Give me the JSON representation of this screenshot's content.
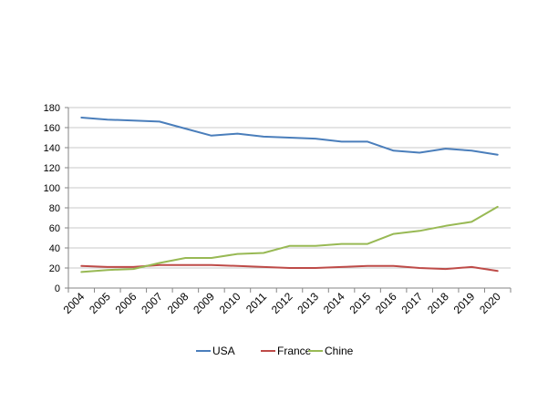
{
  "chart_data": {
    "type": "line",
    "title": "",
    "xlabel": "",
    "ylabel": "",
    "ylim": [
      0,
      180
    ],
    "y_ticks": [
      0,
      20,
      40,
      60,
      80,
      100,
      120,
      140,
      160,
      180
    ],
    "grid": "horizontal",
    "legend_position": "bottom",
    "categories": [
      "2004",
      "2005",
      "2006",
      "2007",
      "2008",
      "2009",
      "2010",
      "2011",
      "2012",
      "2013",
      "2014",
      "2015",
      "2016",
      "2017",
      "2018",
      "2019",
      "2020"
    ],
    "series": [
      {
        "name": "USA",
        "color": "#4a7ebb",
        "values": [
          170,
          168,
          167,
          166,
          159,
          152,
          154,
          151,
          150,
          149,
          146,
          146,
          137,
          135,
          139,
          137,
          133
        ]
      },
      {
        "name": "France",
        "color": "#be4b48",
        "values": [
          22,
          21,
          21,
          23,
          23,
          23,
          22,
          21,
          20,
          20,
          21,
          22,
          22,
          20,
          19,
          21,
          17
        ]
      },
      {
        "name": "Chine",
        "color": "#98b954",
        "values": [
          16,
          18,
          19,
          25,
          30,
          30,
          34,
          35,
          42,
          42,
          44,
          44,
          54,
          57,
          62,
          66,
          81
        ]
      }
    ]
  }
}
